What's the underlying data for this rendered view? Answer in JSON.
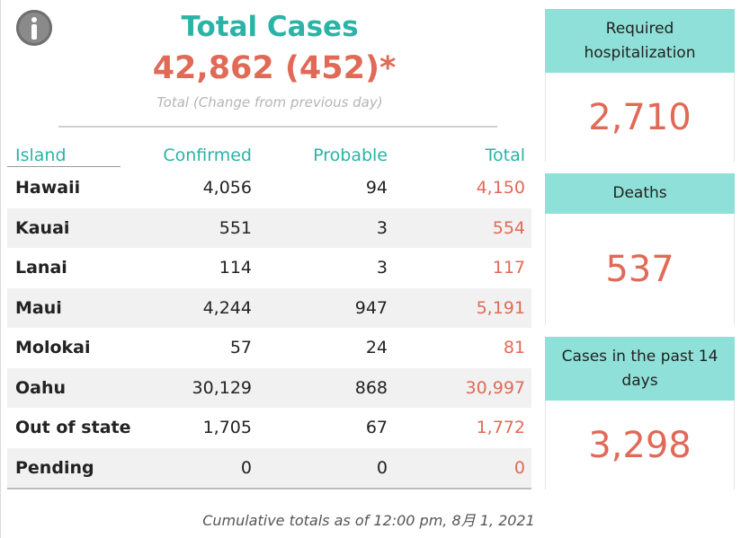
{
  "summary": {
    "title": "Total Cases",
    "headline": "42,862 (452)*",
    "subtitle": "Total (Change from previous day)"
  },
  "table": {
    "headers": {
      "island": "Island",
      "confirmed": "Confirmed",
      "probable": "Probable",
      "total": "Total"
    },
    "rows": [
      {
        "island": "Hawaii",
        "confirmed": "4,056",
        "probable": "94",
        "total": "4,150"
      },
      {
        "island": "Kauai",
        "confirmed": "551",
        "probable": "3",
        "total": "554"
      },
      {
        "island": "Lanai",
        "confirmed": "114",
        "probable": "3",
        "total": "117"
      },
      {
        "island": "Maui",
        "confirmed": "4,244",
        "probable": "947",
        "total": "5,191"
      },
      {
        "island": "Molokai",
        "confirmed": "57",
        "probable": "24",
        "total": "81"
      },
      {
        "island": "Oahu",
        "confirmed": "30,129",
        "probable": "868",
        "total": "30,997"
      },
      {
        "island": "Out of state",
        "confirmed": "1,705",
        "probable": "67",
        "total": "1,772"
      },
      {
        "island": "Pending",
        "confirmed": "0",
        "probable": "0",
        "total": "0"
      }
    ]
  },
  "cards": [
    {
      "label": "Required hospitalization",
      "value": "2,710"
    },
    {
      "label": "Deaths",
      "value": "537"
    },
    {
      "label": "Cases in the past 14 days",
      "value": "3,298"
    }
  ],
  "footer": "Cumulative totals as of 12:00 pm, 8月 1, 2021",
  "icons": {
    "info": "info-icon"
  },
  "colors": {
    "accent_teal": "#2ab3a6",
    "value_coral": "#e06a57",
    "card_header_bg": "#8fe0d8"
  }
}
